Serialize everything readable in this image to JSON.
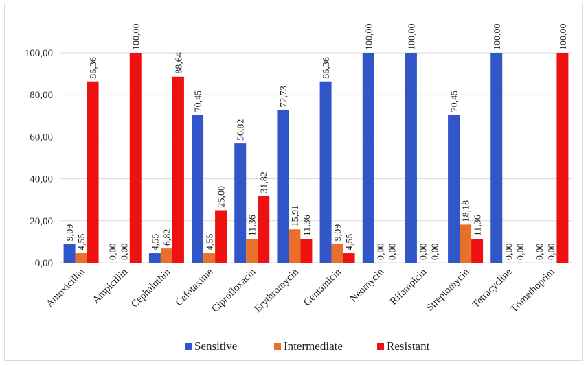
{
  "chart_data": {
    "type": "bar",
    "categories": [
      "Amoxicillin",
      "Ampicillin",
      "Cephalothin",
      "Cefotaxime",
      "Ciprofloxacin",
      "Erythromycin",
      "Gentamicin",
      "Neomycin",
      "Rifampicin",
      "Streptomycin",
      "Tetracycline",
      "Trimethoprim"
    ],
    "series": [
      {
        "name": "Sensitive",
        "color": "#3056C8",
        "values": [
          9.09,
          0.0,
          4.55,
          70.45,
          56.82,
          72.73,
          86.36,
          100.0,
          100.0,
          70.45,
          100.0,
          0.0
        ],
        "labels": [
          "9,09",
          "0,00",
          "4,55",
          "70,45",
          "56,82",
          "72,73",
          "86,36",
          "100,00",
          "100,00",
          "70,45",
          "100,00",
          "0,00"
        ]
      },
      {
        "name": "Intermediate",
        "color": "#E8702A",
        "values": [
          4.55,
          0.0,
          6.82,
          4.55,
          11.36,
          15.91,
          9.09,
          0.0,
          0.0,
          18.18,
          0.0,
          0.0
        ],
        "labels": [
          "4,55",
          "0,00",
          "6,82",
          "4,55",
          "11,36",
          "15,91",
          "9,09",
          "0,00",
          "0,00",
          "18,18",
          "0,00",
          "0,00"
        ]
      },
      {
        "name": "Resistant",
        "color": "#EE1111",
        "values": [
          86.36,
          100.0,
          88.64,
          25.0,
          31.82,
          11.36,
          4.55,
          0.0,
          0.0,
          11.36,
          0.0,
          100.0
        ],
        "labels": [
          "86,36",
          "100,00",
          "88,64",
          "25,00",
          "31,82",
          "11,36",
          "4,55",
          "0,00",
          "0,00",
          "11,36",
          "0,00",
          "100,00"
        ]
      }
    ],
    "yticks": [
      "0,00",
      "20,00",
      "40,00",
      "60,00",
      "80,00",
      "100,00"
    ],
    "ylim": [
      0,
      100
    ],
    "grid": true,
    "legend_position": "bottom"
  }
}
